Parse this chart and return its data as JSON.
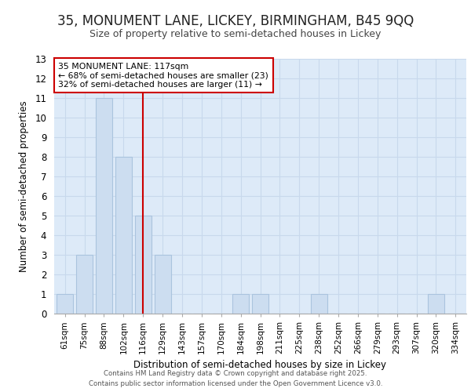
{
  "title_line1": "35, MONUMENT LANE, LICKEY, BIRMINGHAM, B45 9QQ",
  "title_line2": "Size of property relative to semi-detached houses in Lickey",
  "xlabel": "Distribution of semi-detached houses by size in Lickey",
  "ylabel": "Number of semi-detached properties",
  "categories": [
    "61sqm",
    "75sqm",
    "88sqm",
    "102sqm",
    "116sqm",
    "129sqm",
    "143sqm",
    "157sqm",
    "170sqm",
    "184sqm",
    "198sqm",
    "211sqm",
    "225sqm",
    "238sqm",
    "252sqm",
    "266sqm",
    "279sqm",
    "293sqm",
    "307sqm",
    "320sqm",
    "334sqm"
  ],
  "values": [
    1,
    3,
    11,
    8,
    5,
    3,
    0,
    0,
    0,
    1,
    1,
    0,
    0,
    1,
    0,
    0,
    0,
    0,
    0,
    1,
    0
  ],
  "bar_color": "#ccddf0",
  "bar_edge_color": "#aac4de",
  "subject_bar_index": 4,
  "subject_line_color": "#cc0000",
  "subject_label": "35 MONUMENT LANE: 117sqm",
  "pct_smaller": 68,
  "n_smaller": 23,
  "pct_larger": 32,
  "n_larger": 11,
  "ylim": [
    0,
    13
  ],
  "yticks": [
    0,
    1,
    2,
    3,
    4,
    5,
    6,
    7,
    8,
    9,
    10,
    11,
    12,
    13
  ],
  "grid_color": "#c8d8ec",
  "background_color": "#ddeaf8",
  "annotation_box_color": "#ffffff",
  "annotation_box_edge": "#cc0000",
  "footer_line1": "Contains HM Land Registry data © Crown copyright and database right 2025.",
  "footer_line2": "Contains public sector information licensed under the Open Government Licence v3.0."
}
